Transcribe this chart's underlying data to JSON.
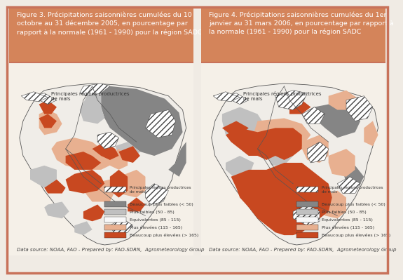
{
  "background_color": "#f0ebe4",
  "border_color": "#c8725a",
  "header_bg": "#d4845a",
  "header_text_color": "#ffffff",
  "body_bg": "#f5f0e8",
  "map_bg": "#f8f5f0",
  "fig3_title": "Figure 3. Précipitations saisonnières cumulées du 10\noctobre au 31 décembre 2005, en pourcentage par\nrapport à la normale (1961 - 1990) pour la région SADC",
  "fig4_title": "Figure 4. Précipitations saisonnières cumulées du 1er\njanvier au 31 mars 2006, en pourcentage par rapport à\nla normale (1961 - 1990) pour la région SADC",
  "footer_text": "Data source: NOAA, FAO - Prepared by: FAO-SDRN,  Agrometeorology Group",
  "legend_hatch_label": "Principales régions productrices\nde maïs",
  "legend_colors": [
    "#858585",
    "#c0c0c0",
    "#f8f8f8",
    "#e8b090",
    "#c84820"
  ],
  "legend_labels": [
    "Beaucoup plus faibles (< 50)",
    "Plus faibles (50 - 85)",
    "Equivalentes (85 - 115)",
    "Plus élevées (115 - 165)",
    "Beaucoup plus élevées (> 165)"
  ],
  "font_size_title": 6.8,
  "font_size_legend": 5.2,
  "font_size_footer": 5.0,
  "dark_gray": "#858585",
  "light_gray": "#c0c0c0",
  "map_white": "#f0ede8",
  "light_orange": "#e8b090",
  "dark_orange": "#c84820"
}
